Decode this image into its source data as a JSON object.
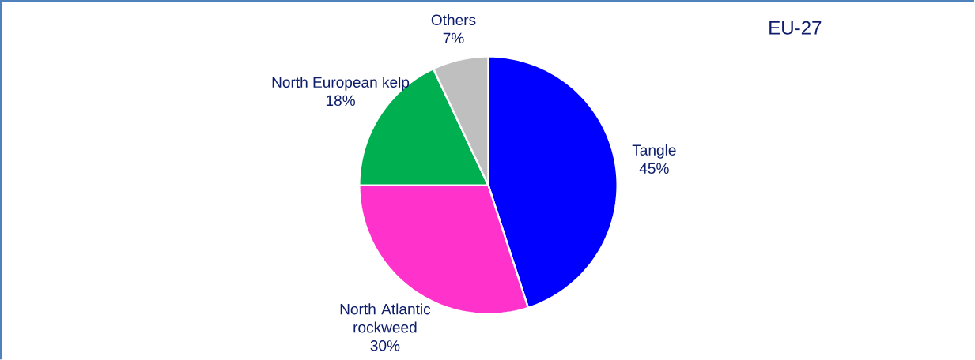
{
  "chart_data": {
    "type": "pie",
    "title": "EU-27",
    "categories": [
      "Tangle",
      "North Atlantic rockweed",
      "North European kelp",
      "Others"
    ],
    "values": [
      45,
      30,
      18,
      7
    ],
    "colors": [
      "#0000ff",
      "#ff33cc",
      "#00b050",
      "#bfbfbf"
    ],
    "value_labels": [
      "45%",
      "30%",
      "18%",
      "7%"
    ]
  }
}
